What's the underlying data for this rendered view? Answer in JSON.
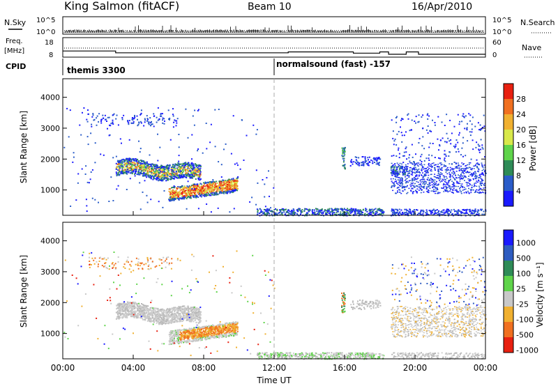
{
  "header": {
    "station": "King Salmon (fitACF)",
    "beam": "Beam 10",
    "date": "16/Apr/2010"
  },
  "status_panels": {
    "nsky_label": "N.Sky",
    "nsearch_label": "N.Search",
    "freq_label_1": "Freq.",
    "freq_label_2": "[MHz]",
    "nave_label": "Nave",
    "cpid_label": "CPID",
    "nsky_ticks": [
      "10^5",
      "10^0"
    ],
    "nsearch_ticks": [
      "10^5",
      "10^0"
    ],
    "freq_ticks": [
      "18",
      "8"
    ],
    "nave_ticks": [
      "60",
      "0"
    ],
    "cpid_segments": [
      {
        "start_hour": 0,
        "label": "themis 3300"
      },
      {
        "start_hour": 12,
        "label": "normalsound (fast) -157"
      }
    ]
  },
  "chart_data": [
    {
      "type": "heatmap",
      "panel": "power",
      "ylabel": "Slant Range [km]",
      "y_ticks": [
        "1000",
        "2000",
        "3000",
        "4000"
      ],
      "ylim": [
        180,
        4600
      ],
      "xlim_hours": [
        0,
        24
      ],
      "colorbar_label": "Power [dB]",
      "colorbar_ticks": [
        "4",
        "8",
        "12",
        "16",
        "20",
        "24",
        "28"
      ],
      "colorbar_colors": [
        "#1a1aff",
        "#2a5cc9",
        "#2e8b57",
        "#5fd44a",
        "#d8e84a",
        "#f0b030",
        "#f07020",
        "#e82010"
      ],
      "echo_regions": [
        {
          "t0": 3.0,
          "t1": 7.8,
          "r0": 1400,
          "r1": 2100,
          "note": "high-power band"
        },
        {
          "t0": 6.0,
          "t1": 9.8,
          "r0": 700,
          "r1": 1300,
          "note": "high-power band"
        },
        {
          "t0": 18.5,
          "t1": 24.0,
          "r0": 900,
          "r1": 1900,
          "note": "low-power band"
        }
      ]
    },
    {
      "type": "heatmap",
      "panel": "velocity",
      "ylabel": "Slant Range [km]",
      "y_ticks": [
        "1000",
        "2000",
        "3000",
        "4000"
      ],
      "ylim": [
        180,
        4600
      ],
      "xlim_hours": [
        0,
        24
      ],
      "colorbar_label": "Velocity [m s⁻¹]",
      "colorbar_ticks": [
        "1000",
        "500",
        "100",
        "25",
        "-25",
        "-100",
        "-500",
        "-1000"
      ],
      "colorbar_colors": [
        "#1a1aff",
        "#2e5cc0",
        "#2e8b57",
        "#5fd44a",
        "#c8c8c8",
        "#f0b030",
        "#f07020",
        "#e82010"
      ],
      "x_ticks": [
        "00:00",
        "04:00",
        "08:00",
        "12:00",
        "16:00",
        "20:00",
        "00:00"
      ],
      "xlabel": "Time UT"
    }
  ]
}
